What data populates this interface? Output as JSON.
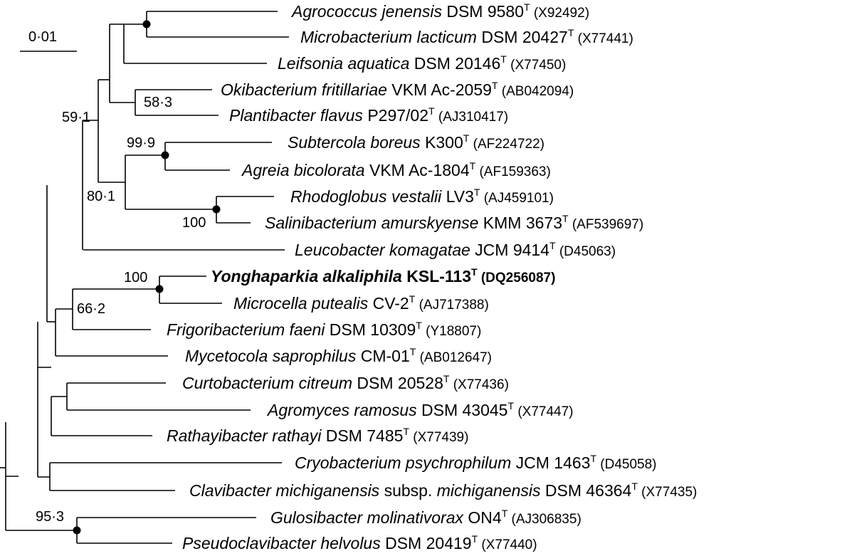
{
  "scale_bar": {
    "label": "0·01"
  },
  "taxa": [
    {
      "id": "agrococcus",
      "parts": [
        {
          "t": "Agrococcus jenensis",
          "i": true
        },
        {
          "t": " DSM 9580"
        }
      ],
      "sup": "T",
      "acc": "(X92492)"
    },
    {
      "id": "microbacterium",
      "parts": [
        {
          "t": "Microbacterium lacticum",
          "i": true
        },
        {
          "t": " DSM 20427"
        }
      ],
      "sup": "T",
      "acc": "(X77441)"
    },
    {
      "id": "leifsonia",
      "parts": [
        {
          "t": "Leifsonia aquatica",
          "i": true
        },
        {
          "t": " DSM 20146"
        }
      ],
      "sup": "T",
      "acc": "(X77450)"
    },
    {
      "id": "okibacterium",
      "parts": [
        {
          "t": "Okibacterium fritillariae",
          "i": true
        },
        {
          "t": " VKM Ac-2059"
        }
      ],
      "sup": "T",
      "acc": "(AB042094)"
    },
    {
      "id": "plantibacter",
      "parts": [
        {
          "t": "Plantibacter flavus",
          "i": true
        },
        {
          "t": " P297/02"
        }
      ],
      "sup": "T",
      "acc": "(AJ310417)"
    },
    {
      "id": "subtercola",
      "parts": [
        {
          "t": "Subtercola boreus",
          "i": true
        },
        {
          "t": " K300"
        }
      ],
      "sup": "T",
      "acc": "(AF224722)"
    },
    {
      "id": "agreia",
      "parts": [
        {
          "t": "Agreia bicolorata",
          "i": true
        },
        {
          "t": " VKM Ac-1804"
        }
      ],
      "sup": "T",
      "acc": "(AF159363)"
    },
    {
      "id": "rhodoglobus",
      "parts": [
        {
          "t": "Rhodoglobus vestalii",
          "i": true
        },
        {
          "t": " LV3"
        }
      ],
      "sup": "T",
      "acc": "(AJ459101)"
    },
    {
      "id": "salinibacterium",
      "parts": [
        {
          "t": "Salinibacterium amurskyense",
          "i": true
        },
        {
          "t": " KMM 3673"
        }
      ],
      "sup": "T",
      "acc": "(AF539697)"
    },
    {
      "id": "leucobacter",
      "parts": [
        {
          "t": "Leucobacter komagatae",
          "i": true
        },
        {
          "t": " JCM 9414"
        }
      ],
      "sup": "T",
      "acc": "(D45063)"
    },
    {
      "id": "yonghaparkia",
      "bold": true,
      "parts": [
        {
          "t": "Yonghaparkia alkaliphila",
          "i": true
        },
        {
          "t": " KSL-113"
        }
      ],
      "sup": "T",
      "acc": "(DQ256087)"
    },
    {
      "id": "microcella",
      "parts": [
        {
          "t": "Microcella putealis",
          "i": true
        },
        {
          "t": " CV-2"
        }
      ],
      "sup": "T",
      "acc": "(AJ717388)"
    },
    {
      "id": "frigoribacterium",
      "parts": [
        {
          "t": "Frigoribacterium faeni",
          "i": true
        },
        {
          "t": " DSM 10309"
        }
      ],
      "sup": "T",
      "acc": "(Y18807)"
    },
    {
      "id": "mycetocola",
      "parts": [
        {
          "t": "Mycetocola saprophilus",
          "i": true
        },
        {
          "t": " CM-01"
        }
      ],
      "sup": "T",
      "acc": "(AB012647)"
    },
    {
      "id": "curtobacterium",
      "parts": [
        {
          "t": "Curtobacterium citreum",
          "i": true
        },
        {
          "t": " DSM 20528"
        }
      ],
      "sup": "T",
      "acc": "(X77436)"
    },
    {
      "id": "agromyces",
      "parts": [
        {
          "t": "Agromyces ramosus",
          "i": true
        },
        {
          "t": " DSM 43045"
        }
      ],
      "sup": "T",
      "acc": "(X77447)"
    },
    {
      "id": "rathayibacter",
      "parts": [
        {
          "t": "Rathayibacter rathayi",
          "i": true
        },
        {
          "t": " DSM 7485"
        }
      ],
      "sup": "T",
      "acc": "(X77439)"
    },
    {
      "id": "cryobacterium",
      "parts": [
        {
          "t": "Cryobacterium psychrophilum",
          "i": true
        },
        {
          "t": " JCM 1463"
        }
      ],
      "sup": "T",
      "acc": "(D45058)"
    },
    {
      "id": "clavibacter",
      "parts": [
        {
          "t": "Clavibacter michiganensis",
          "i": true
        },
        {
          "t": " subsp. "
        },
        {
          "t": "michiganensis",
          "i": true
        },
        {
          "t": " DSM 46364"
        }
      ],
      "sup": "T",
      "acc": "(X77435)"
    },
    {
      "id": "gulosibacter",
      "parts": [
        {
          "t": "Gulosibacter molinativorax",
          "i": true
        },
        {
          "t": " ON4"
        }
      ],
      "sup": "T",
      "acc": "(AJ306835)"
    },
    {
      "id": "pseudoclavibacter",
      "parts": [
        {
          "t": "Pseudoclavibacter helvolus",
          "i": true
        },
        {
          "t": " DSM 20419"
        }
      ],
      "sup": "T",
      "acc": "(X77440)"
    }
  ],
  "bootstrap_values": {
    "okibacterium_plantibacter": "58·3",
    "upper_clade": "59·1",
    "subtercola_agreia": "99·9",
    "subtercola_rhodoglobus": "80·1",
    "rhodoglobus_salinibacterium": "100",
    "yonghaparkia_microcella": "100",
    "yonghaparkia_frigoribacterium": "66·2",
    "gulosibacter_pseudoclavibacter": "95·3"
  }
}
